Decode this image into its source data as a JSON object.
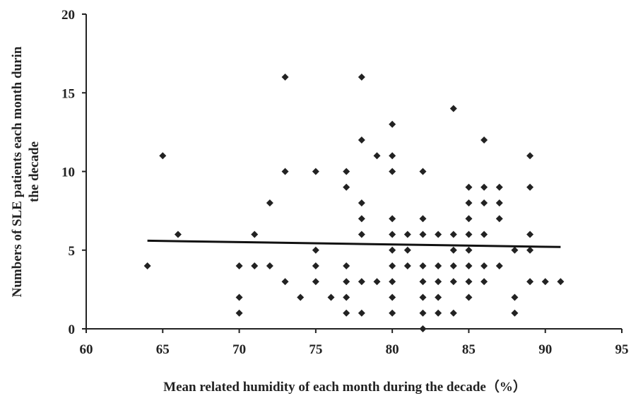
{
  "chart_data": {
    "type": "scatter",
    "title": "",
    "xlabel": "Mean related humidity of each month during the decade（%）",
    "ylabel": "Numbers of SLE patients each month durin the decade",
    "xlim": [
      60,
      95
    ],
    "ylim": [
      0,
      20
    ],
    "xticks": [
      60,
      65,
      70,
      75,
      80,
      85,
      90,
      95
    ],
    "yticks": [
      0,
      5,
      10,
      15,
      20
    ],
    "grid": false,
    "legend": "none",
    "marker_color": "#222222",
    "trendline": {
      "type": "linear",
      "x": [
        64,
        91
      ],
      "y": [
        5.6,
        5.2
      ]
    },
    "points": [
      [
        64,
        4
      ],
      [
        65,
        11
      ],
      [
        66,
        6
      ],
      [
        70,
        4
      ],
      [
        70,
        2
      ],
      [
        70,
        1
      ],
      [
        71,
        6
      ],
      [
        71,
        4
      ],
      [
        72,
        8
      ],
      [
        72,
        4
      ],
      [
        73,
        16
      ],
      [
        73,
        10
      ],
      [
        73,
        3
      ],
      [
        74,
        2
      ],
      [
        75,
        10
      ],
      [
        75,
        5
      ],
      [
        75,
        4
      ],
      [
        75,
        3
      ],
      [
        76,
        2
      ],
      [
        77,
        10
      ],
      [
        77,
        9
      ],
      [
        77,
        4
      ],
      [
        77,
        3
      ],
      [
        77,
        2
      ],
      [
        77,
        1
      ],
      [
        78,
        16
      ],
      [
        78,
        12
      ],
      [
        78,
        8
      ],
      [
        78,
        7
      ],
      [
        78,
        6
      ],
      [
        78,
        3
      ],
      [
        78,
        1
      ],
      [
        79,
        11
      ],
      [
        79,
        3
      ],
      [
        80,
        13
      ],
      [
        80,
        11
      ],
      [
        80,
        10
      ],
      [
        80,
        7
      ],
      [
        80,
        6
      ],
      [
        80,
        5
      ],
      [
        80,
        4
      ],
      [
        80,
        3
      ],
      [
        80,
        2
      ],
      [
        80,
        1
      ],
      [
        81,
        6
      ],
      [
        81,
        5
      ],
      [
        81,
        4
      ],
      [
        82,
        10
      ],
      [
        82,
        7
      ],
      [
        82,
        6
      ],
      [
        82,
        4
      ],
      [
        82,
        3
      ],
      [
        82,
        2
      ],
      [
        82,
        1
      ],
      [
        82,
        0
      ],
      [
        83,
        6
      ],
      [
        83,
        4
      ],
      [
        83,
        3
      ],
      [
        83,
        2
      ],
      [
        83,
        1
      ],
      [
        84,
        14
      ],
      [
        84,
        6
      ],
      [
        84,
        5
      ],
      [
        84,
        4
      ],
      [
        84,
        3
      ],
      [
        84,
        1
      ],
      [
        85,
        9
      ],
      [
        85,
        8
      ],
      [
        85,
        7
      ],
      [
        85,
        6
      ],
      [
        85,
        5
      ],
      [
        85,
        4
      ],
      [
        85,
        3
      ],
      [
        85,
        2
      ],
      [
        86,
        12
      ],
      [
        86,
        9
      ],
      [
        86,
        8
      ],
      [
        86,
        6
      ],
      [
        86,
        4
      ],
      [
        86,
        3
      ],
      [
        87,
        9
      ],
      [
        87,
        8
      ],
      [
        87,
        7
      ],
      [
        87,
        4
      ],
      [
        88,
        5
      ],
      [
        88,
        2
      ],
      [
        88,
        1
      ],
      [
        89,
        11
      ],
      [
        89,
        9
      ],
      [
        89,
        6
      ],
      [
        89,
        5
      ],
      [
        89,
        3
      ],
      [
        90,
        3
      ],
      [
        91,
        3
      ]
    ]
  }
}
